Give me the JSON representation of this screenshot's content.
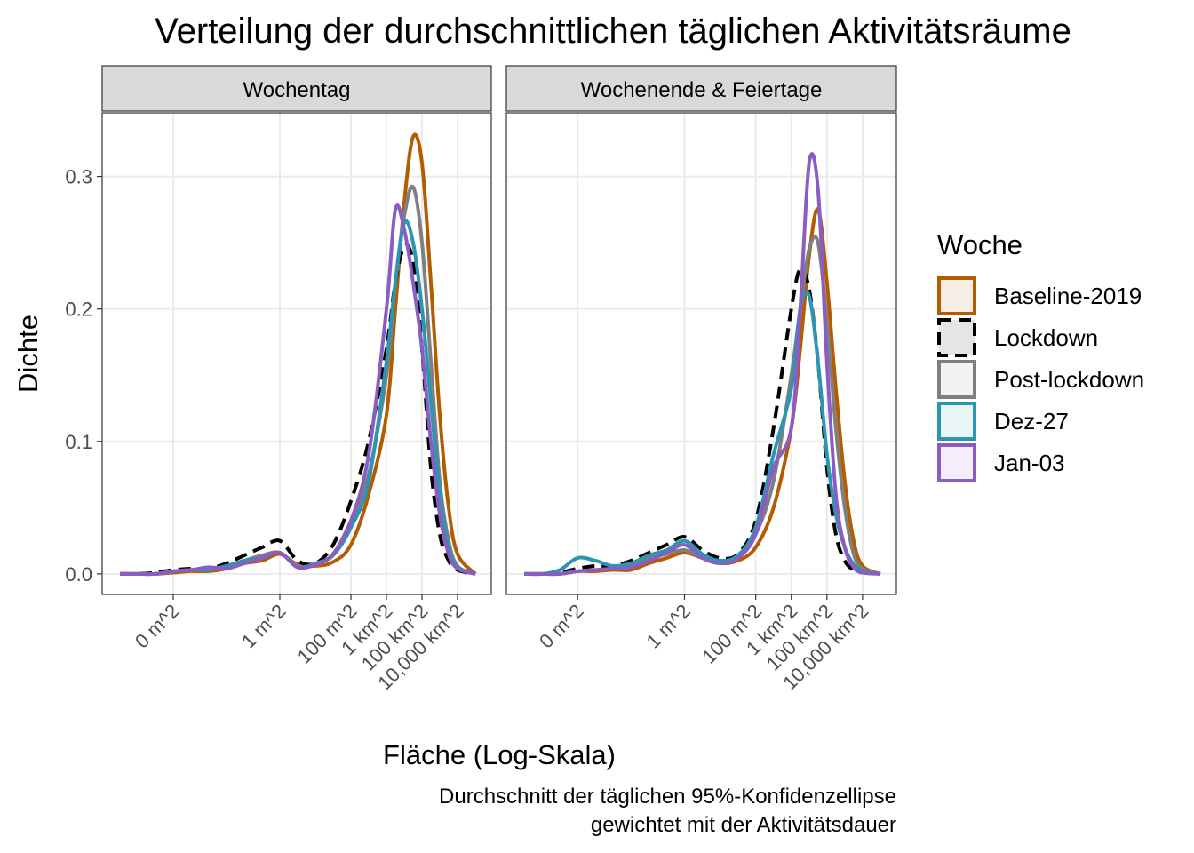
{
  "title": "Verteilung der durchschnittlichen täglichen Aktivitätsräume",
  "x_label": "Fläche (Log-Skala)",
  "y_label": "Dichte",
  "legend_title": "Woche",
  "caption": [
    "Durchschnitt der täglichen 95%-Konfidenzellipse",
    "gewichtet mit der Aktivitätsdauer"
  ],
  "chart_data": [
    {
      "type": "line",
      "title": "Wochentag",
      "x": [
        -4.5,
        -4,
        -3.5,
        -3,
        -2.5,
        -2,
        -1.5,
        -1,
        -0.5,
        0,
        0.5,
        1,
        1.5,
        2,
        2.5,
        3,
        3.25,
        3.5,
        3.75,
        4,
        4.25,
        4.5,
        4.75,
        5,
        5.5
      ],
      "xlim": [
        -5,
        5.95
      ],
      "ylim": [
        -0.0155,
        0.348
      ],
      "grid": true,
      "xticks": [
        {
          "value": -3,
          "label": "0 m^2"
        },
        {
          "value": 0,
          "label": "1 m^2"
        },
        {
          "value": 2,
          "label": "100 m^2"
        },
        {
          "value": 3,
          "label": "1 km^2"
        },
        {
          "value": 4,
          "label": "100 km^2"
        },
        {
          "value": 5,
          "label": "10,000 km^2"
        }
      ],
      "yticks": [
        {
          "value": 0,
          "label": "0.0"
        },
        0.1,
        0.2,
        0.3
      ],
      "series": [
        {
          "name": "Baseline-2019",
          "color": "#b35c00",
          "line_style": "solid",
          "values": [
            0,
            0,
            0,
            0.001,
            0.002,
            0.002,
            0.004,
            0.008,
            0.01,
            0.015,
            0.007,
            0.006,
            0.009,
            0.022,
            0.06,
            0.12,
            0.2,
            0.28,
            0.33,
            0.31,
            0.22,
            0.12,
            0.05,
            0.015,
            0
          ]
        },
        {
          "name": "Lockdown",
          "color": "#000000",
          "line_style": "dashed",
          "values": [
            0,
            0,
            0.001,
            0.003,
            0.004,
            0.004,
            0.008,
            0.014,
            0.02,
            0.025,
            0.01,
            0.008,
            0.022,
            0.055,
            0.1,
            0.17,
            0.22,
            0.247,
            0.235,
            0.17,
            0.08,
            0.03,
            0.01,
            0.003,
            0
          ]
        },
        {
          "name": "Post-lockdown",
          "color": "#7f7f7f",
          "line_style": "solid",
          "values": [
            0,
            0,
            0,
            0.002,
            0.003,
            0.003,
            0.006,
            0.01,
            0.014,
            0.016,
            0.006,
            0.007,
            0.015,
            0.04,
            0.075,
            0.15,
            0.22,
            0.27,
            0.292,
            0.25,
            0.16,
            0.07,
            0.025,
            0.006,
            0
          ]
        },
        {
          "name": "Dez-27",
          "color": "#2b95b2",
          "line_style": "solid",
          "values": [
            0,
            0,
            0,
            0.002,
            0.003,
            0.003,
            0.006,
            0.01,
            0.012,
            0.016,
            0.005,
            0.008,
            0.014,
            0.035,
            0.07,
            0.16,
            0.22,
            0.265,
            0.25,
            0.2,
            0.13,
            0.06,
            0.02,
            0.005,
            0
          ]
        },
        {
          "name": "Jan-03",
          "color": "#8a5cc4",
          "line_style": "solid",
          "values": [
            0,
            0,
            0,
            0.002,
            0.003,
            0.005,
            0.004,
            0.008,
            0.012,
            0.016,
            0.005,
            0.007,
            0.015,
            0.04,
            0.09,
            0.2,
            0.275,
            0.26,
            0.22,
            0.17,
            0.1,
            0.045,
            0.015,
            0.004,
            0
          ]
        }
      ]
    },
    {
      "type": "line",
      "title": "Wochenende & Feiertage",
      "x": [
        -4.5,
        -4,
        -3.5,
        -3,
        -2.5,
        -2,
        -1.5,
        -1,
        -0.5,
        0,
        0.5,
        1,
        1.5,
        2,
        2.5,
        3,
        3.25,
        3.5,
        3.75,
        4,
        4.25,
        4.5,
        4.75,
        5,
        5.5
      ],
      "xlim": [
        -5,
        5.95
      ],
      "ylim": [
        -0.0155,
        0.348
      ],
      "grid": true,
      "xticks": [
        {
          "value": -3,
          "label": "0 m^2"
        },
        {
          "value": 0,
          "label": "1 m^2"
        },
        {
          "value": 2,
          "label": "100 m^2"
        },
        {
          "value": 3,
          "label": "1 km^2"
        },
        {
          "value": 4,
          "label": "100 km^2"
        },
        {
          "value": 5,
          "label": "10,000 km^2"
        }
      ],
      "yticks": [
        {
          "value": 0,
          "label": "0.0"
        },
        0.1,
        0.2,
        0.3
      ],
      "series": [
        {
          "name": "Baseline-2019",
          "color": "#b35c00",
          "line_style": "solid",
          "values": [
            0,
            0,
            0,
            0.002,
            0.002,
            0.003,
            0.003,
            0.008,
            0.012,
            0.016,
            0.012,
            0.008,
            0.01,
            0.02,
            0.05,
            0.11,
            0.17,
            0.24,
            0.275,
            0.22,
            0.14,
            0.07,
            0.025,
            0.006,
            0
          ]
        },
        {
          "name": "Lockdown",
          "color": "#000000",
          "line_style": "dashed",
          "values": [
            0,
            0,
            0.001,
            0.004,
            0.006,
            0.006,
            0.01,
            0.016,
            0.022,
            0.028,
            0.018,
            0.012,
            0.015,
            0.04,
            0.11,
            0.2,
            0.23,
            0.215,
            0.16,
            0.08,
            0.03,
            0.01,
            0.003,
            0.001,
            0
          ]
        },
        {
          "name": "Post-lockdown",
          "color": "#7f7f7f",
          "line_style": "solid",
          "values": [
            0,
            0,
            0,
            0.002,
            0.003,
            0.004,
            0.006,
            0.012,
            0.015,
            0.018,
            0.012,
            0.01,
            0.012,
            0.03,
            0.07,
            0.15,
            0.2,
            0.245,
            0.25,
            0.19,
            0.11,
            0.05,
            0.015,
            0.004,
            0
          ]
        },
        {
          "name": "Dez-27",
          "color": "#2b95b2",
          "line_style": "solid",
          "values": [
            0,
            0,
            0.003,
            0.012,
            0.01,
            0.006,
            0.008,
            0.014,
            0.018,
            0.025,
            0.015,
            0.01,
            0.014,
            0.035,
            0.09,
            0.14,
            0.2,
            0.21,
            0.16,
            0.09,
            0.045,
            0.02,
            0.007,
            0.002,
            0
          ]
        },
        {
          "name": "Jan-03",
          "color": "#8a5cc4",
          "line_style": "solid",
          "values": [
            0,
            0,
            0,
            0.002,
            0.003,
            0.004,
            0.005,
            0.01,
            0.016,
            0.022,
            0.012,
            0.008,
            0.012,
            0.03,
            0.08,
            0.11,
            0.2,
            0.31,
            0.29,
            0.16,
            0.06,
            0.02,
            0.005,
            0.001,
            0
          ]
        }
      ]
    }
  ]
}
